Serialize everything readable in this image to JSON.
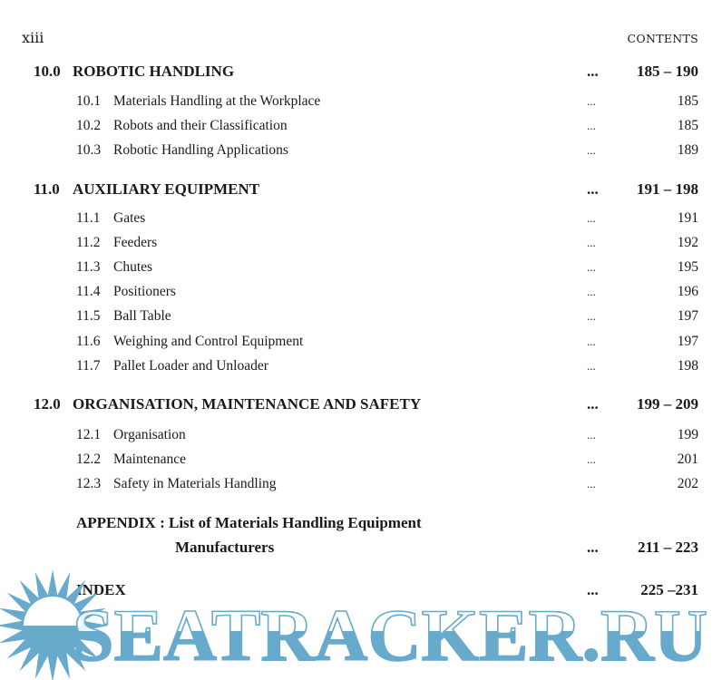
{
  "header": {
    "page_number": "xiii",
    "running_title": "CONTENTS"
  },
  "entries": [
    {
      "type": "chapter",
      "number": "10.0",
      "title": "ROBOTIC HANDLING",
      "leader": "...",
      "pages": "185 – 190"
    },
    {
      "type": "section",
      "number": "10.1",
      "title": "Materials Handling at the Workplace",
      "leader": "...",
      "pages": "185"
    },
    {
      "type": "section",
      "number": "10.2",
      "title": "Robots and their Classification",
      "leader": "...",
      "pages": "185"
    },
    {
      "type": "section",
      "number": "10.3",
      "title": "Robotic Handling Applications",
      "leader": "...",
      "pages": "189"
    },
    {
      "type": "chapter",
      "number": "11.0",
      "title": "AUXILIARY EQUIPMENT",
      "leader": "...",
      "pages": "191 – 198"
    },
    {
      "type": "section",
      "number": "11.1",
      "title": "Gates",
      "leader": "...",
      "pages": "191"
    },
    {
      "type": "section",
      "number": "11.2",
      "title": "Feeders",
      "leader": "...",
      "pages": "192"
    },
    {
      "type": "section",
      "number": "11.3",
      "title": "Chutes",
      "leader": "...",
      "pages": "195"
    },
    {
      "type": "section",
      "number": "11.4",
      "title": "Positioners",
      "leader": "...",
      "pages": "196"
    },
    {
      "type": "section",
      "number": "11.5",
      "title": "Ball Table",
      "leader": "...",
      "pages": "197"
    },
    {
      "type": "section",
      "number": "11.6",
      "title": "Weighing and Control Equipment",
      "leader": "...",
      "pages": "197"
    },
    {
      "type": "section",
      "number": "11.7",
      "title": "Pallet Loader and Unloader",
      "leader": "...",
      "pages": "198"
    },
    {
      "type": "chapter",
      "number": "12.0",
      "title": "ORGANISATION, MAINTENANCE AND SAFETY",
      "leader": "...",
      "pages": "199 – 209"
    },
    {
      "type": "section",
      "number": "12.1",
      "title": "Organisation",
      "leader": "...",
      "pages": "199"
    },
    {
      "type": "section",
      "number": "12.2",
      "title": "Maintenance",
      "leader": "...",
      "pages": "201"
    },
    {
      "type": "section",
      "number": "12.3",
      "title": "Safety in Materials Handling",
      "leader": "...",
      "pages": "202"
    }
  ],
  "appendix": {
    "line1": "APPENDIX : List of Materials Handling Equipment",
    "line2": "Manufacturers",
    "leader": "...",
    "pages": "211 – 223"
  },
  "index": {
    "title": "INDEX",
    "leader": "...",
    "pages": "225 –231"
  },
  "watermark": {
    "text": "SEATRACKER.RU",
    "color": "#67aacb",
    "icon": "sun-icon"
  }
}
